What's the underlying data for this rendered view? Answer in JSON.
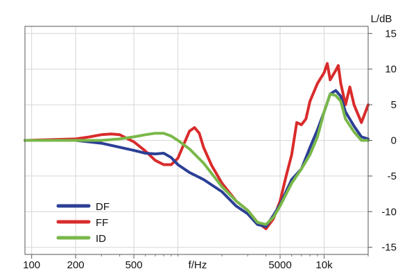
{
  "chart_data": {
    "type": "line",
    "title": "",
    "xlabel": "f/Hz",
    "ylabel": "L/dB",
    "x_scale": "log",
    "xlim": [
      90,
      20000
    ],
    "ylim": [
      -16,
      16
    ],
    "x_ticks": [
      100,
      200,
      500,
      5000,
      10000
    ],
    "x_tick_labels": [
      "100",
      "200",
      "500",
      "5000",
      "10k"
    ],
    "y_ticks": [
      15,
      10,
      5,
      0,
      -5,
      -10,
      -15
    ],
    "y_tick_labels": [
      "15",
      "10",
      "5",
      "0",
      "-5",
      "-10",
      "-15"
    ],
    "grid": true,
    "legend_position": "bottom-left",
    "series": [
      {
        "name": "DF",
        "color": "#2b3f95",
        "points": [
          [
            90,
            0
          ],
          [
            200,
            0
          ],
          [
            300,
            -0.4
          ],
          [
            500,
            -1.4
          ],
          [
            600,
            -1.8
          ],
          [
            700,
            -1.9
          ],
          [
            800,
            -1.8
          ],
          [
            900,
            -2.4
          ],
          [
            1000,
            -3.4
          ],
          [
            1200,
            -4.5
          ],
          [
            1500,
            -5.5
          ],
          [
            2000,
            -7.2
          ],
          [
            2500,
            -9.2
          ],
          [
            3000,
            -10.3
          ],
          [
            3500,
            -11.8
          ],
          [
            4000,
            -12.1
          ],
          [
            4500,
            -10.5
          ],
          [
            5000,
            -9.0
          ],
          [
            6000,
            -5.5
          ],
          [
            7000,
            -4.0
          ],
          [
            8000,
            -1.0
          ],
          [
            9000,
            1.5
          ],
          [
            10000,
            4.0
          ],
          [
            11000,
            6.5
          ],
          [
            12000,
            7.0
          ],
          [
            13000,
            6.2
          ],
          [
            14000,
            4.0
          ],
          [
            16000,
            2.0
          ],
          [
            18000,
            0.5
          ],
          [
            20000,
            0.2
          ]
        ]
      },
      {
        "name": "FF",
        "color": "#d92b2b",
        "points": [
          [
            90,
            0
          ],
          [
            200,
            0.2
          ],
          [
            250,
            0.5
          ],
          [
            300,
            0.8
          ],
          [
            350,
            0.9
          ],
          [
            400,
            0.8
          ],
          [
            500,
            -0.2
          ],
          [
            600,
            -1.5
          ],
          [
            700,
            -2.8
          ],
          [
            800,
            -3.4
          ],
          [
            900,
            -3.4
          ],
          [
            1000,
            -2.5
          ],
          [
            1100,
            -0.5
          ],
          [
            1200,
            1.3
          ],
          [
            1300,
            1.8
          ],
          [
            1400,
            1.0
          ],
          [
            1500,
            -1.0
          ],
          [
            1700,
            -3.5
          ],
          [
            2000,
            -6.0
          ],
          [
            2500,
            -8.5
          ],
          [
            3000,
            -9.8
          ],
          [
            3500,
            -11.5
          ],
          [
            4000,
            -12.4
          ],
          [
            4500,
            -11.0
          ],
          [
            5000,
            -8.5
          ],
          [
            5500,
            -5.0
          ],
          [
            6000,
            -2.0
          ],
          [
            6500,
            2.5
          ],
          [
            7000,
            2.2
          ],
          [
            7500,
            3.0
          ],
          [
            8000,
            5.5
          ],
          [
            9000,
            8.0
          ],
          [
            10000,
            9.5
          ],
          [
            10500,
            10.8
          ],
          [
            11000,
            8.5
          ],
          [
            12000,
            9.8
          ],
          [
            12500,
            10.5
          ],
          [
            13000,
            8.0
          ],
          [
            14000,
            5.0
          ],
          [
            15000,
            7.5
          ],
          [
            16000,
            5.0
          ],
          [
            18000,
            2.5
          ],
          [
            20000,
            5.0
          ]
        ]
      },
      {
        "name": "ID",
        "color": "#79b849",
        "points": [
          [
            90,
            0
          ],
          [
            300,
            0
          ],
          [
            400,
            0.2
          ],
          [
            500,
            0.5
          ],
          [
            600,
            0.8
          ],
          [
            700,
            1.0
          ],
          [
            800,
            1.0
          ],
          [
            900,
            0.6
          ],
          [
            1000,
            0
          ],
          [
            1200,
            -1.2
          ],
          [
            1500,
            -3.2
          ],
          [
            2000,
            -6.5
          ],
          [
            2500,
            -8.5
          ],
          [
            3000,
            -9.8
          ],
          [
            3500,
            -11.5
          ],
          [
            4000,
            -11.8
          ],
          [
            4500,
            -10.8
          ],
          [
            5000,
            -9.2
          ],
          [
            6000,
            -6.0
          ],
          [
            7000,
            -4.0
          ],
          [
            8000,
            -2.0
          ],
          [
            9000,
            0.5
          ],
          [
            10000,
            4.0
          ],
          [
            11000,
            6.5
          ],
          [
            12000,
            6.3
          ],
          [
            13000,
            5.5
          ],
          [
            14000,
            3.0
          ],
          [
            16000,
            1.2
          ],
          [
            18000,
            0
          ],
          [
            20000,
            0
          ]
        ]
      }
    ]
  }
}
